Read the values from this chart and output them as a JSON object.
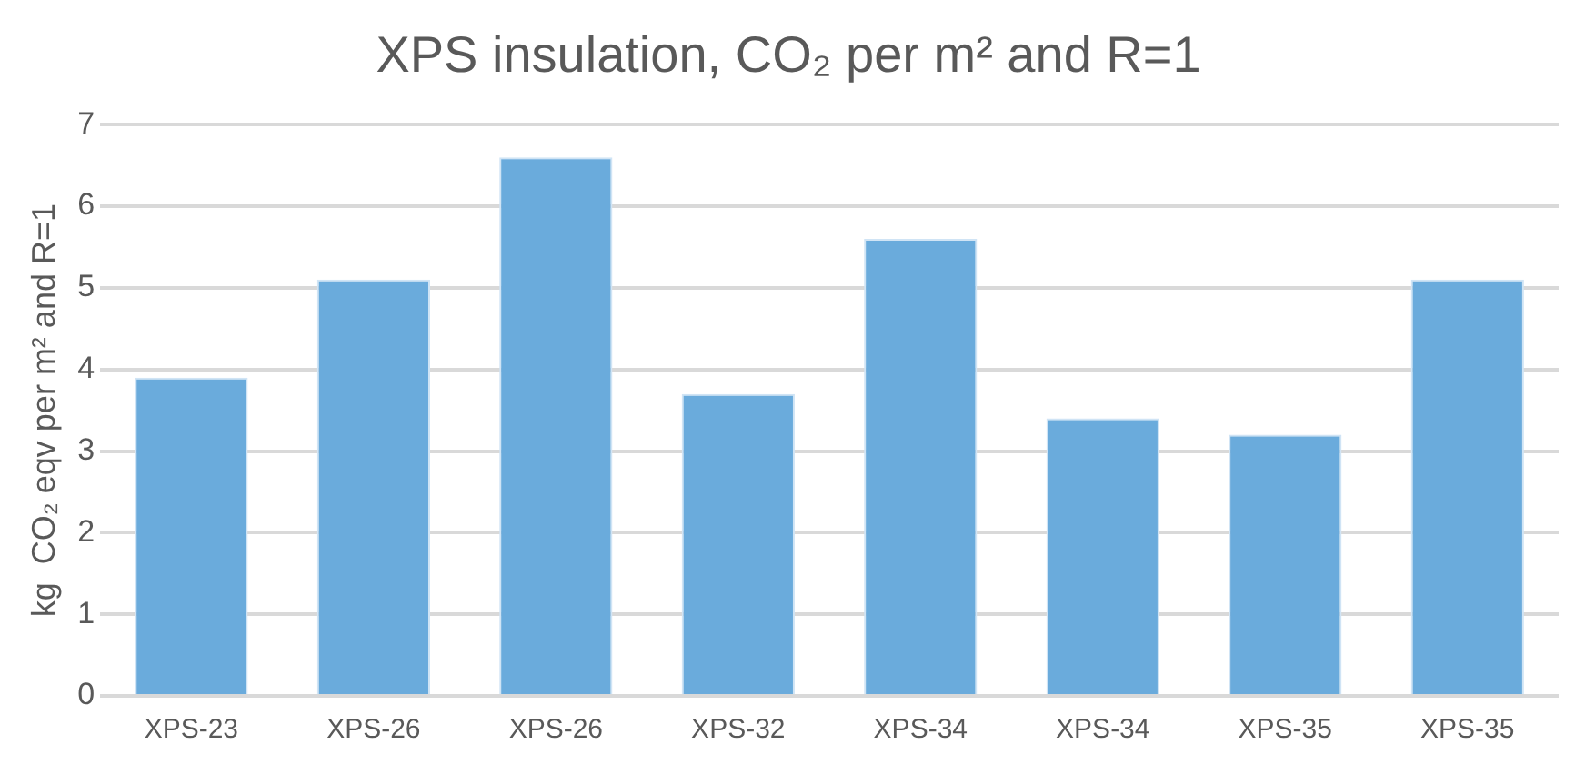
{
  "chart_data": {
    "type": "bar",
    "title": "XPS insulation, CO₂ per m² and R=1",
    "ylabel": "kg  CO₂ eqv per m² and R=1",
    "categories": [
      "XPS-23",
      "XPS-26",
      "XPS-26",
      "XPS-32",
      "XPS-34",
      "XPS-34",
      "XPS-35",
      "XPS-35"
    ],
    "values": [
      3.9,
      5.1,
      6.6,
      3.7,
      5.6,
      3.4,
      3.2,
      5.1
    ],
    "color": "#6aabdc",
    "ylim": [
      0,
      7
    ],
    "yticks": [
      0,
      1,
      2,
      3,
      4,
      5,
      6,
      7
    ],
    "grid": "y",
    "legend": false
  }
}
